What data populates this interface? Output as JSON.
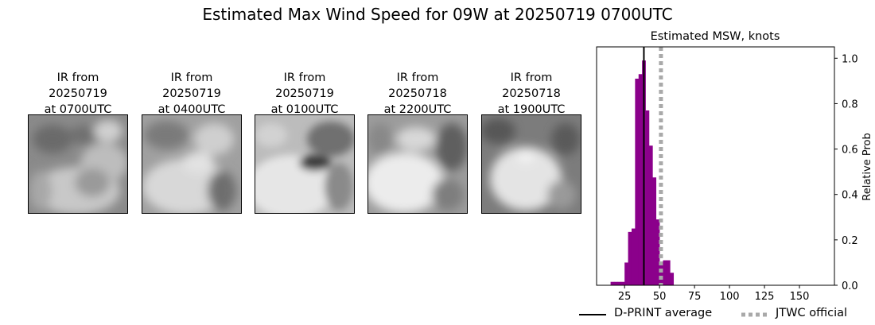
{
  "title": "Estimated Max Wind Speed for 09W at 20250719 0700UTC",
  "ir_panels": [
    {
      "line1": "IR from",
      "line2": "20250719",
      "line3": "at 0700UTC"
    },
    {
      "line1": "IR from",
      "line2": "20250719",
      "line3": "at 0400UTC"
    },
    {
      "line1": "IR from",
      "line2": "20250719",
      "line3": "at 0100UTC"
    },
    {
      "line1": "IR from",
      "line2": "20250718",
      "line3": "at 2200UTC"
    },
    {
      "line1": "IR from",
      "line2": "20250718",
      "line3": "at 1900UTC"
    }
  ],
  "chart_data": {
    "type": "bar",
    "title": "Estimated MSW, knots",
    "xlabel": "",
    "ylabel": "Relative Prob",
    "xlim": [
      5,
      175
    ],
    "ylim": [
      0,
      1.05
    ],
    "x_ticks": [
      25,
      50,
      75,
      100,
      125,
      150
    ],
    "y_ticks": [
      0.0,
      0.2,
      0.4,
      0.6,
      0.8,
      1.0
    ],
    "bin_width": 2.5,
    "bins": [
      {
        "x": 15,
        "value": 0.015
      },
      {
        "x": 17.5,
        "value": 0.015
      },
      {
        "x": 20,
        "value": 0.015
      },
      {
        "x": 22.5,
        "value": 0.015
      },
      {
        "x": 25,
        "value": 0.1
      },
      {
        "x": 27.5,
        "value": 0.235
      },
      {
        "x": 30,
        "value": 0.25
      },
      {
        "x": 32.5,
        "value": 0.91
      },
      {
        "x": 35,
        "value": 0.93
      },
      {
        "x": 37.5,
        "value": 0.99
      },
      {
        "x": 40,
        "value": 0.77
      },
      {
        "x": 42.5,
        "value": 0.615
      },
      {
        "x": 45,
        "value": 0.475
      },
      {
        "x": 47.5,
        "value": 0.29
      },
      {
        "x": 50,
        "value": 0.105
      },
      {
        "x": 52.5,
        "value": 0.11
      },
      {
        "x": 55,
        "value": 0.11
      },
      {
        "x": 57.5,
        "value": 0.055
      }
    ],
    "bar_color": "#8b008b",
    "dprint_average": 38.8,
    "jtwc_official": 51,
    "legend": {
      "dprint_label": "D-PRINT average",
      "jtwc_label": "JTWC official",
      "placement": "bottom"
    }
  }
}
